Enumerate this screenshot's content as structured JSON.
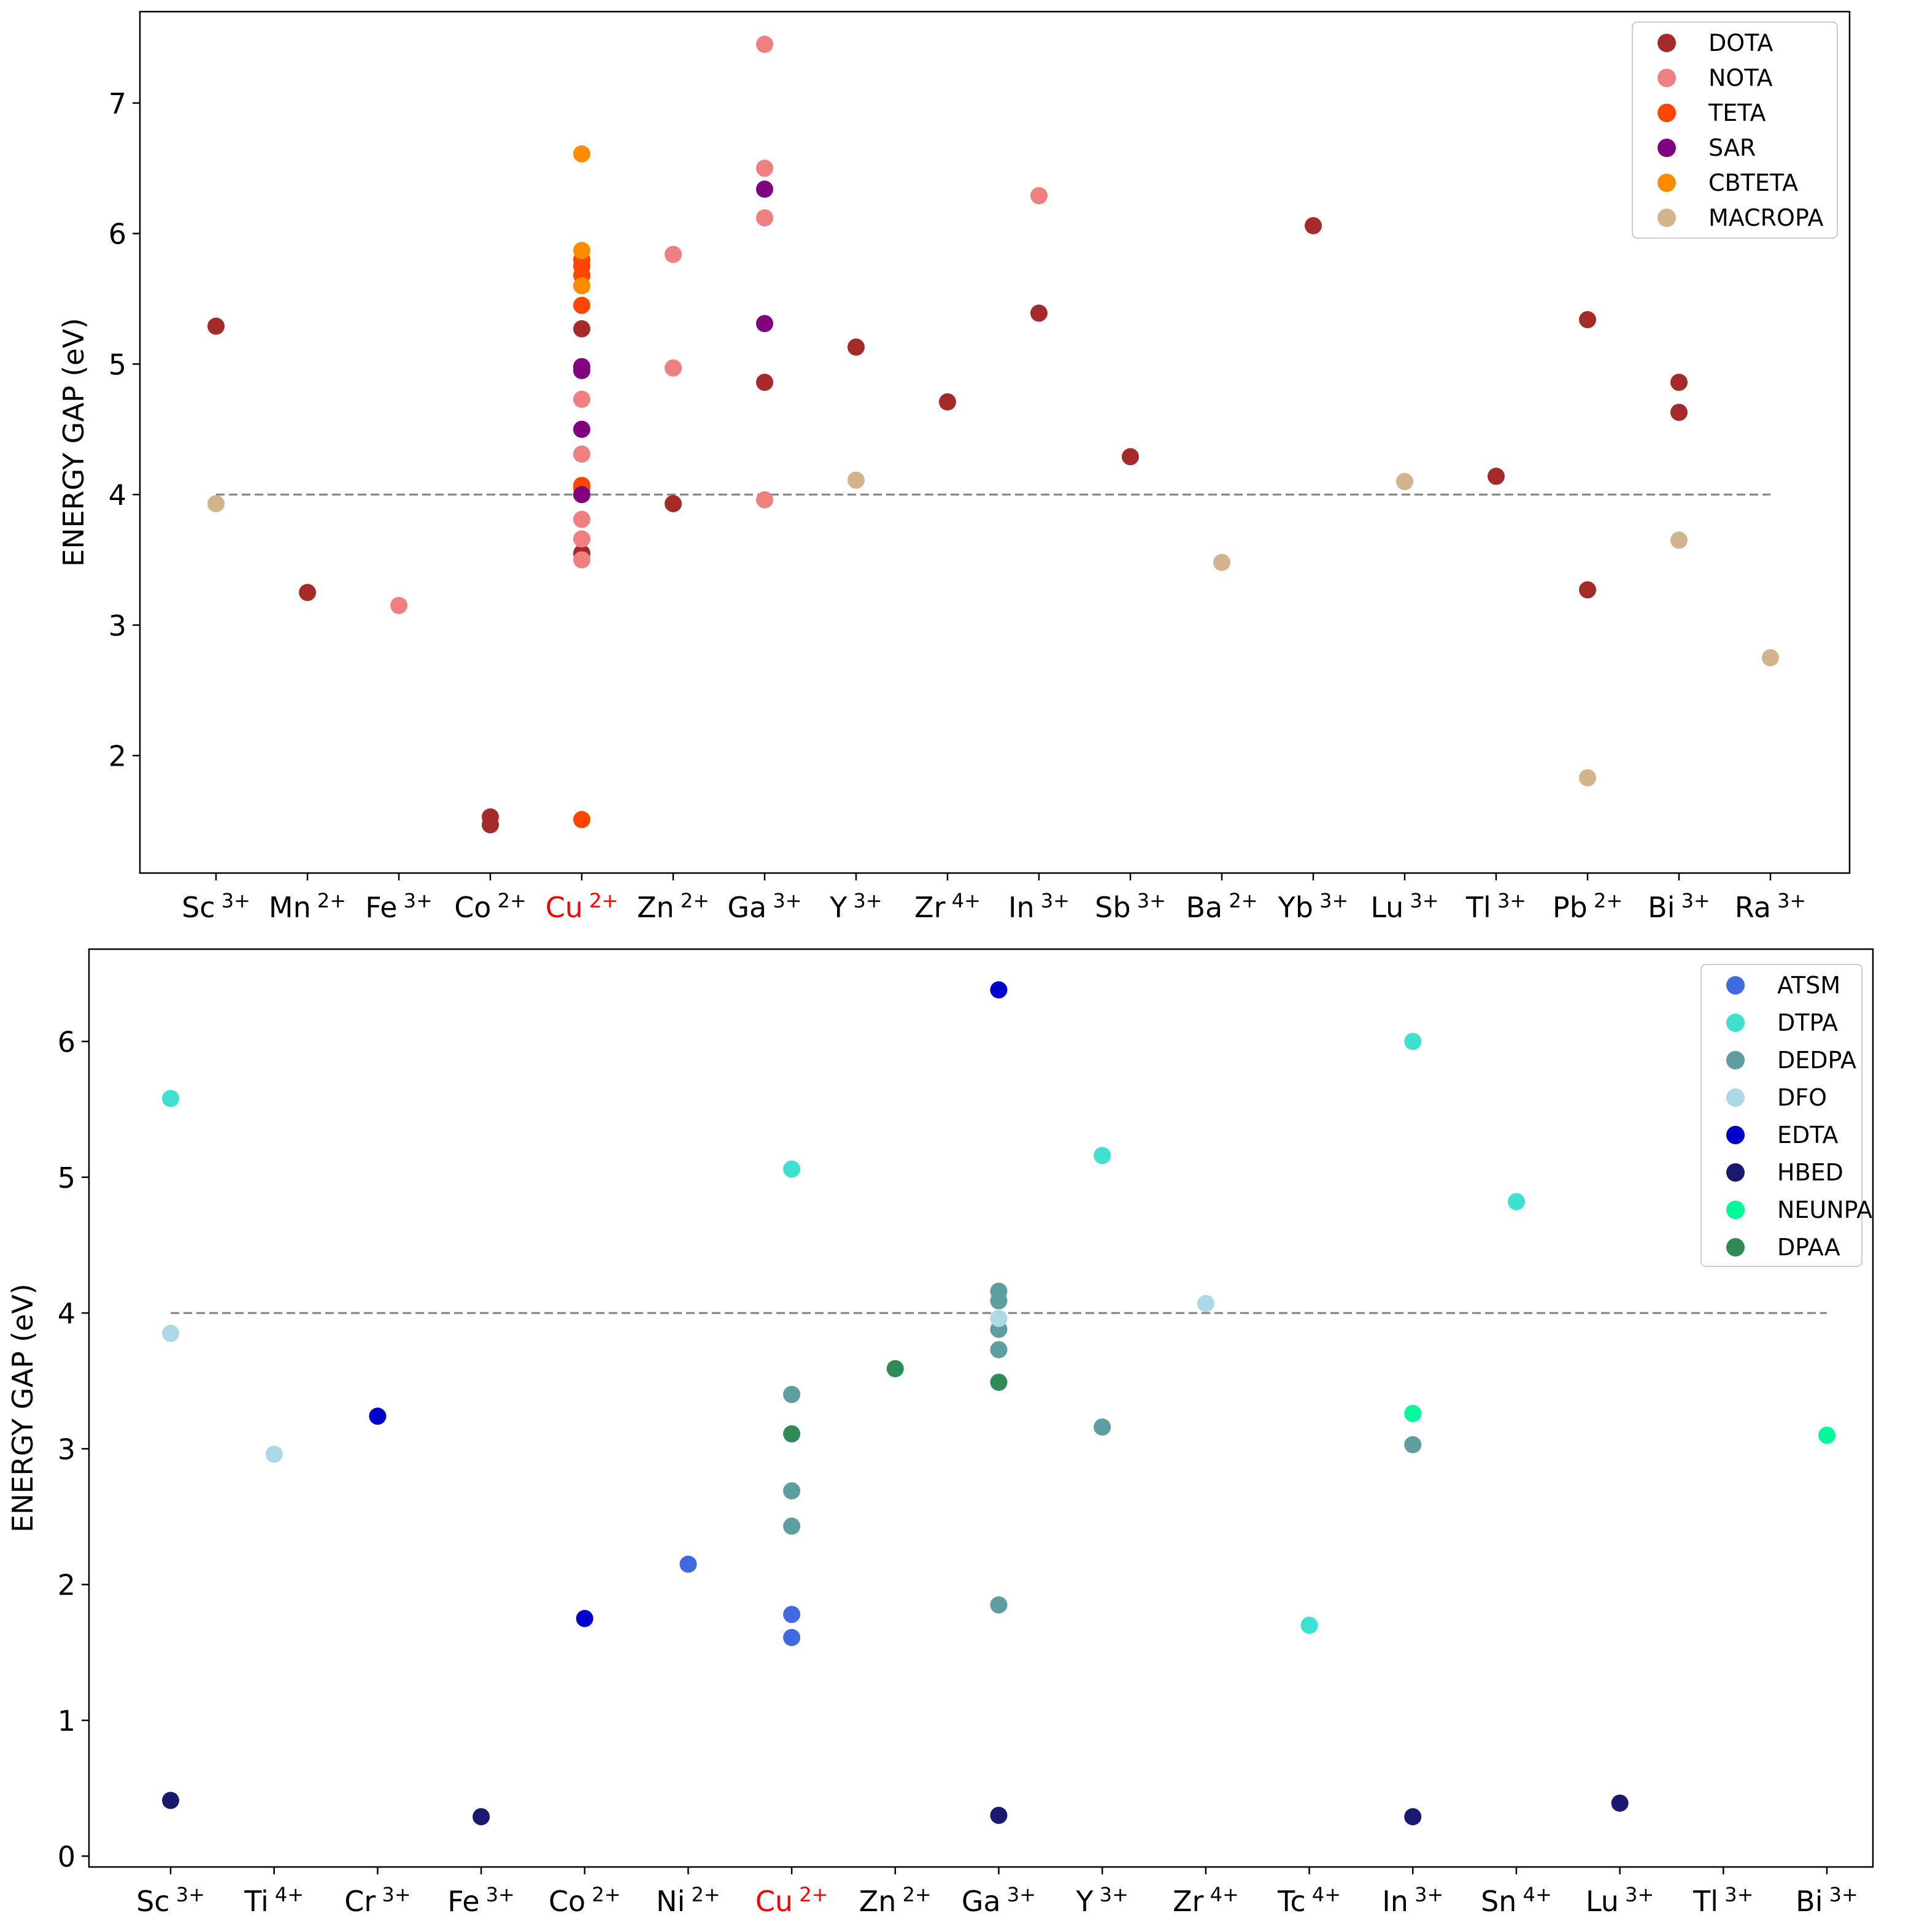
{
  "chart_data": [
    {
      "type": "scatter",
      "title": "",
      "xlabel": "",
      "ylabel": "ENERGY GAP (eV)",
      "ylim": [
        1.1,
        7.7
      ],
      "yticks": [
        2,
        3,
        4,
        5,
        6,
        7
      ],
      "grid": false,
      "legend_position": "top-right",
      "reference_line": {
        "y": 4,
        "style": "dashed",
        "color": "#808080"
      },
      "categories": [
        {
          "base": "Sc",
          "charge": "3+",
          "highlight": false
        },
        {
          "base": "Mn",
          "charge": "2+",
          "highlight": false
        },
        {
          "base": "Fe",
          "charge": "3+",
          "highlight": false
        },
        {
          "base": "Co",
          "charge": "2+",
          "highlight": false
        },
        {
          "base": "Cu",
          "charge": "2+",
          "highlight": true
        },
        {
          "base": "Zn",
          "charge": "2+",
          "highlight": false
        },
        {
          "base": "Ga",
          "charge": "3+",
          "highlight": false
        },
        {
          "base": "Y",
          "charge": "3+",
          "highlight": false
        },
        {
          "base": "Zr",
          "charge": "4+",
          "highlight": false
        },
        {
          "base": "In",
          "charge": "3+",
          "highlight": false
        },
        {
          "base": "Sb",
          "charge": "3+",
          "highlight": false
        },
        {
          "base": "Ba",
          "charge": "2+",
          "highlight": false
        },
        {
          "base": "Yb",
          "charge": "3+",
          "highlight": false
        },
        {
          "base": "Lu",
          "charge": "3+",
          "highlight": false
        },
        {
          "base": "Tl",
          "charge": "3+",
          "highlight": false
        },
        {
          "base": "Pb",
          "charge": "2+",
          "highlight": false
        },
        {
          "base": "Bi",
          "charge": "3+",
          "highlight": false
        },
        {
          "base": "Ra",
          "charge": "3+",
          "highlight": false
        }
      ],
      "highlight_color": "#ff0000",
      "series": [
        {
          "name": "DOTA",
          "color": "#a52a2a",
          "points": [
            [
              0,
              5.29
            ],
            [
              1,
              3.25
            ],
            [
              3,
              1.53
            ],
            [
              3,
              1.47
            ],
            [
              4,
              5.27
            ],
            [
              4,
              3.55
            ],
            [
              5,
              3.93
            ],
            [
              6,
              4.86
            ],
            [
              7,
              5.13
            ],
            [
              8,
              4.71
            ],
            [
              9,
              5.39
            ],
            [
              10,
              4.29
            ],
            [
              12,
              6.06
            ],
            [
              14,
              4.14
            ],
            [
              15,
              5.34
            ],
            [
              15,
              3.27
            ],
            [
              16,
              4.86
            ],
            [
              16,
              4.63
            ]
          ]
        },
        {
          "name": "NOTA",
          "color": "#f08080",
          "points": [
            [
              2,
              3.15
            ],
            [
              4,
              4.73
            ],
            [
              4,
              4.31
            ],
            [
              4,
              3.81
            ],
            [
              4,
              3.66
            ],
            [
              4,
              3.5
            ],
            [
              5,
              5.84
            ],
            [
              5,
              4.97
            ],
            [
              6,
              7.45
            ],
            [
              6,
              6.5
            ],
            [
              6,
              6.12
            ],
            [
              6,
              3.96
            ],
            [
              9,
              6.29
            ]
          ]
        },
        {
          "name": "TETA",
          "color": "#ff4500",
          "points": [
            [
              4,
              5.8
            ],
            [
              4,
              5.75
            ],
            [
              4,
              5.68
            ],
            [
              4,
              5.45
            ],
            [
              4,
              4.07
            ],
            [
              4,
              4.05
            ],
            [
              4,
              1.51
            ]
          ]
        },
        {
          "name": "SAR",
          "color": "#800080",
          "points": [
            [
              4,
              4.98
            ],
            [
              4,
              4.95
            ],
            [
              4,
              4.5
            ],
            [
              4,
              4.0
            ],
            [
              6,
              6.34
            ],
            [
              6,
              5.31
            ]
          ]
        },
        {
          "name": "CBTETA",
          "color": "#ff8c00",
          "points": [
            [
              4,
              6.61
            ],
            [
              4,
              5.87
            ],
            [
              4,
              5.6
            ]
          ]
        },
        {
          "name": "MACROPA",
          "color": "#d2b48c",
          "points": [
            [
              0,
              3.93
            ],
            [
              7,
              4.11
            ],
            [
              11,
              3.48
            ],
            [
              13,
              4.1
            ],
            [
              15,
              1.83
            ],
            [
              16,
              3.65
            ],
            [
              17,
              2.75
            ]
          ]
        }
      ]
    },
    {
      "type": "scatter",
      "title": "",
      "xlabel": "",
      "ylabel": "ENERGY GAP (eV)",
      "ylim": [
        -0.08,
        6.68
      ],
      "yticks": [
        0,
        1,
        2,
        3,
        4,
        5,
        6
      ],
      "grid": false,
      "legend_position": "top-right",
      "reference_line": {
        "y": 4,
        "style": "dashed",
        "color": "#808080"
      },
      "categories": [
        {
          "base": "Sc",
          "charge": "3+",
          "highlight": false
        },
        {
          "base": "Ti",
          "charge": "4+",
          "highlight": false
        },
        {
          "base": "Cr",
          "charge": "3+",
          "highlight": false
        },
        {
          "base": "Fe",
          "charge": "3+",
          "highlight": false
        },
        {
          "base": "Co",
          "charge": "2+",
          "highlight": false
        },
        {
          "base": "Ni",
          "charge": "2+",
          "highlight": false
        },
        {
          "base": "Cu",
          "charge": "2+",
          "highlight": true
        },
        {
          "base": "Zn",
          "charge": "2+",
          "highlight": false
        },
        {
          "base": "Ga",
          "charge": "3+",
          "highlight": false
        },
        {
          "base": "Y",
          "charge": "3+",
          "highlight": false
        },
        {
          "base": "Zr",
          "charge": "4+",
          "highlight": false
        },
        {
          "base": "Tc",
          "charge": "4+",
          "highlight": false
        },
        {
          "base": "In",
          "charge": "3+",
          "highlight": false
        },
        {
          "base": "Sn",
          "charge": "4+",
          "highlight": false
        },
        {
          "base": "Lu",
          "charge": "3+",
          "highlight": false
        },
        {
          "base": "Tl",
          "charge": "3+",
          "highlight": false
        },
        {
          "base": "Bi",
          "charge": "3+",
          "highlight": false
        }
      ],
      "highlight_color": "#ff0000",
      "series": [
        {
          "name": "ATSM",
          "color": "#4169e1",
          "points": [
            [
              5,
              2.15
            ],
            [
              6,
              1.78
            ],
            [
              6,
              1.61
            ]
          ]
        },
        {
          "name": "DTPA",
          "color": "#40e0d0",
          "points": [
            [
              0,
              5.58
            ],
            [
              6,
              5.06
            ],
            [
              9,
              5.16
            ],
            [
              11,
              1.7
            ],
            [
              12,
              6.0
            ],
            [
              13,
              4.82
            ]
          ]
        },
        {
          "name": "DEDPA",
          "color": "#5f9ea0",
          "points": [
            [
              6,
              3.4
            ],
            [
              6,
              2.69
            ],
            [
              6,
              2.43
            ],
            [
              8,
              4.16
            ],
            [
              8,
              4.09
            ],
            [
              8,
              3.88
            ],
            [
              8,
              3.73
            ],
            [
              8,
              1.85
            ],
            [
              9,
              3.16
            ],
            [
              12,
              3.03
            ]
          ]
        },
        {
          "name": "DFO",
          "color": "#add8e6",
          "points": [
            [
              0,
              3.85
            ],
            [
              1,
              2.96
            ],
            [
              8,
              3.96
            ],
            [
              10,
              4.07
            ]
          ]
        },
        {
          "name": "EDTA",
          "color": "#0000cd",
          "points": [
            [
              2,
              3.24
            ],
            [
              4,
              1.75
            ],
            [
              8,
              6.38
            ]
          ]
        },
        {
          "name": "HBED",
          "color": "#191970",
          "points": [
            [
              0,
              0.41
            ],
            [
              3,
              0.29
            ],
            [
              8,
              0.3
            ],
            [
              12,
              0.29
            ],
            [
              14,
              0.39
            ]
          ]
        },
        {
          "name": "NEUNPA",
          "color": "#00fa9a",
          "points": [
            [
              12,
              3.26
            ],
            [
              16,
              3.1
            ]
          ]
        },
        {
          "name": "DPAA",
          "color": "#2e8b57",
          "points": [
            [
              6,
              3.11
            ],
            [
              7,
              3.59
            ],
            [
              8,
              3.49
            ]
          ]
        }
      ]
    }
  ]
}
